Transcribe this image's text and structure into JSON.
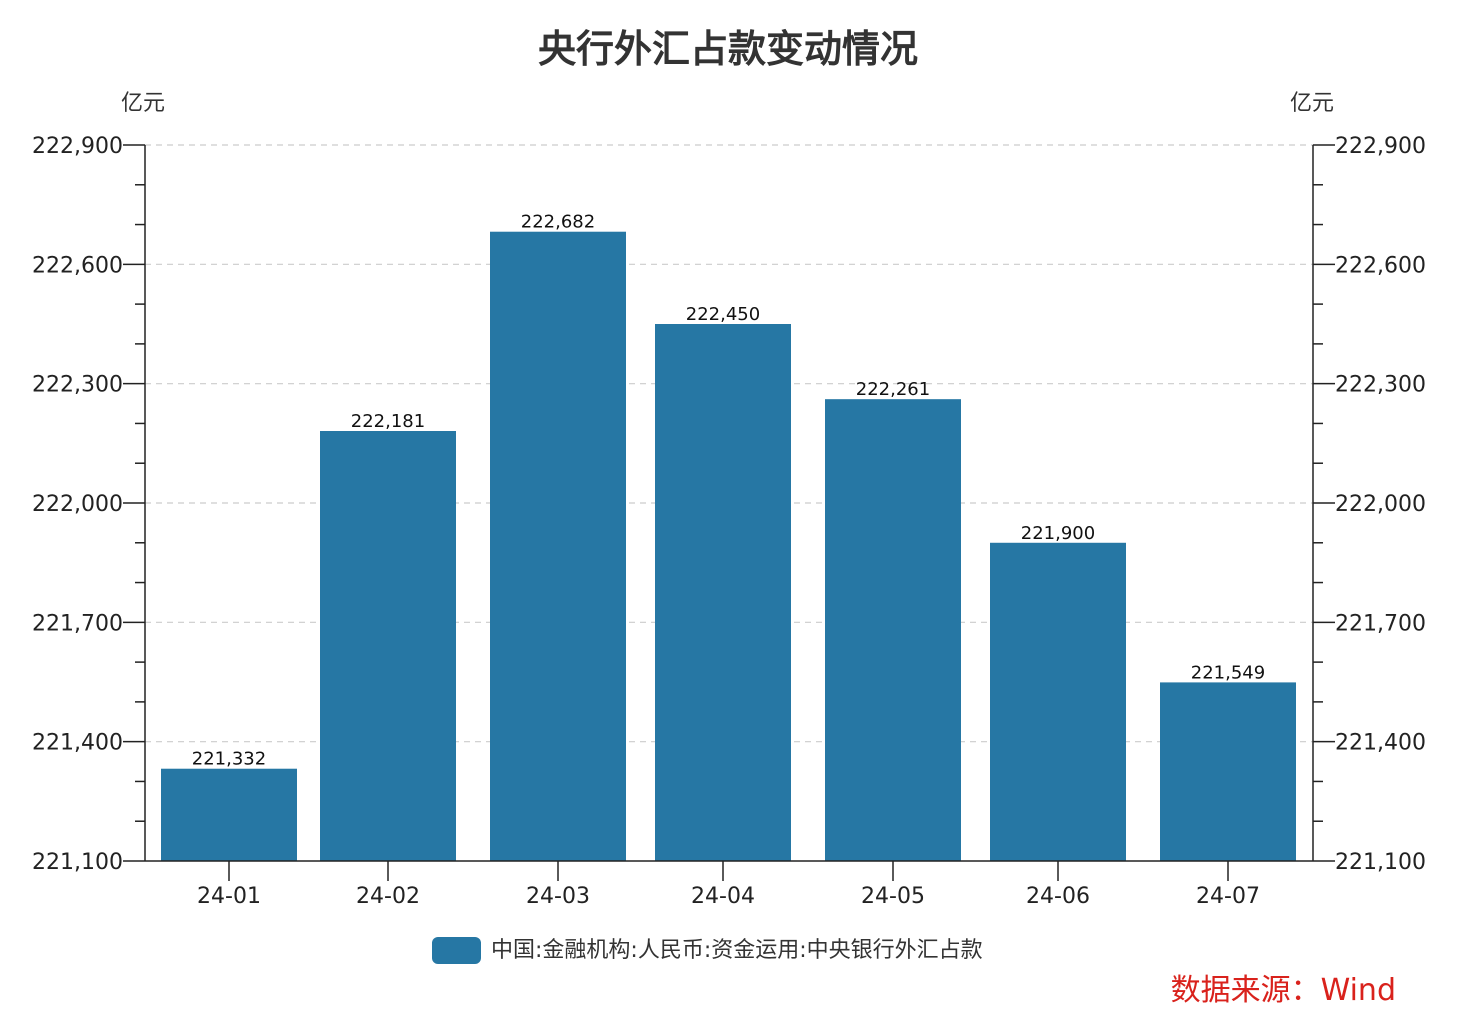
{
  "chart_data": {
    "type": "bar",
    "title": "央行外汇占款变动情况",
    "unit_left": "亿元",
    "unit_right": "亿元",
    "categories": [
      "24-01",
      "24-02",
      "24-03",
      "24-04",
      "24-05",
      "24-06",
      "24-07"
    ],
    "series": [
      {
        "name": "中国:金融机构:人民币:资金运用:中央银行外汇占款",
        "values": [
          221332,
          222181,
          222682,
          222450,
          222261,
          221900,
          221549
        ],
        "color": "#2677a4"
      }
    ],
    "data_labels": [
      "221,332",
      "222,181",
      "222,682",
      "222,450",
      "222,261",
      "221,900",
      "221,549"
    ],
    "ylim": [
      221100,
      222900
    ],
    "y_ticks": [
      221100,
      221400,
      221700,
      222000,
      222300,
      222600,
      222900
    ],
    "y_tick_labels": [
      "221,100",
      "221,400",
      "221,700",
      "222,000",
      "222,300",
      "222,600",
      "222,900"
    ],
    "minor_tick_step": 100,
    "grid": true,
    "legend_position": "bottom-center",
    "colors": {
      "bar": "#2677a4",
      "source_text": "#d9221c",
      "title": "#333333"
    }
  },
  "source_text": "数据来源：Wind"
}
